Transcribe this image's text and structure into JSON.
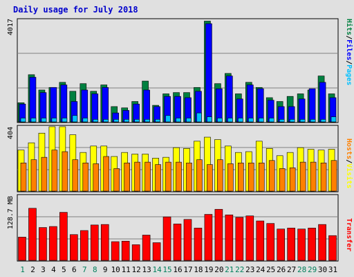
{
  "chart_data": [
    {
      "id": "hits_files_pages",
      "type": "bar",
      "title": "Daily usage for July 2018",
      "categories": [
        "1",
        "2",
        "3",
        "4",
        "5",
        "6",
        "7",
        "8",
        "9",
        "10",
        "11",
        "12",
        "13",
        "14",
        "15",
        "16",
        "17",
        "18",
        "19",
        "20",
        "21",
        "22",
        "23",
        "24",
        "25",
        "26",
        "27",
        "28",
        "29",
        "30",
        "31"
      ],
      "ylim": [
        0,
        4017
      ],
      "max_label": "4017",
      "side_label": {
        "hits": "Hits",
        "sep1": "/",
        "files": "Files",
        "sep2": "/",
        "pages": "Pages"
      },
      "series": [
        {
          "name": "Hits",
          "color": "#008040",
          "values": [
            750,
            1850,
            1250,
            1350,
            1550,
            1200,
            1500,
            1200,
            1450,
            600,
            550,
            800,
            1600,
            650,
            1100,
            1150,
            1150,
            1350,
            3950,
            1500,
            1900,
            1100,
            1550,
            1350,
            950,
            800,
            1000,
            1100,
            1250,
            1800,
            1100
          ]
        },
        {
          "name": "Files",
          "color": "#0000ff",
          "values": [
            700,
            1750,
            1150,
            1350,
            1450,
            800,
            1250,
            1100,
            1350,
            350,
            450,
            700,
            1250,
            600,
            1000,
            1000,
            950,
            1200,
            3850,
            1300,
            1800,
            900,
            1450,
            1300,
            850,
            600,
            600,
            900,
            1300,
            1550,
            950
          ]
        },
        {
          "name": "Pages",
          "color": "#00c0ff",
          "values": [
            150,
            150,
            150,
            150,
            150,
            250,
            150,
            100,
            100,
            100,
            100,
            100,
            100,
            100,
            250,
            150,
            150,
            350,
            200,
            150,
            150,
            150,
            150,
            150,
            150,
            100,
            100,
            100,
            100,
            100,
            200
          ]
        }
      ]
    },
    {
      "id": "hosts_visits",
      "type": "bar",
      "categories": [
        "1",
        "2",
        "3",
        "4",
        "5",
        "6",
        "7",
        "8",
        "9",
        "10",
        "11",
        "12",
        "13",
        "14",
        "15",
        "16",
        "17",
        "18",
        "19",
        "20",
        "21",
        "22",
        "23",
        "24",
        "25",
        "26",
        "27",
        "28",
        "29",
        "30",
        "31"
      ],
      "ylim": [
        0,
        404
      ],
      "max_label": "404",
      "side_label": {
        "hosts": "Hosts",
        "sep": "/",
        "visits": "Visits"
      },
      "series": [
        {
          "name": "Visits",
          "color": "#ffff00",
          "values": [
            255,
            300,
            360,
            400,
            400,
            350,
            240,
            280,
            280,
            215,
            240,
            230,
            230,
            205,
            210,
            270,
            265,
            310,
            335,
            320,
            280,
            240,
            245,
            310,
            265,
            220,
            240,
            270,
            260,
            255,
            260
          ]
        },
        {
          "name": "Hosts",
          "color": "#ff8000",
          "values": [
            175,
            195,
            210,
            255,
            245,
            195,
            175,
            170,
            215,
            140,
            175,
            180,
            180,
            165,
            180,
            180,
            175,
            195,
            165,
            195,
            170,
            175,
            175,
            175,
            190,
            140,
            145,
            180,
            180,
            175,
            190
          ]
        }
      ]
    },
    {
      "id": "transfer",
      "type": "bar",
      "categories": [
        "1",
        "2",
        "3",
        "4",
        "5",
        "6",
        "7",
        "8",
        "9",
        "10",
        "11",
        "12",
        "13",
        "14",
        "15",
        "16",
        "17",
        "18",
        "19",
        "20",
        "21",
        "22",
        "23",
        "24",
        "25",
        "26",
        "27",
        "28",
        "29",
        "30",
        "31"
      ],
      "ylim": [
        0,
        128.7
      ],
      "unit": "MB",
      "max_label": "128.7 MB",
      "side_label": {
        "transfer": "Transfer"
      },
      "series": [
        {
          "name": "Transfer",
          "color": "#ff0000",
          "values": [
            46,
            103,
            65,
            67,
            95,
            51,
            59,
            70,
            71,
            37,
            38,
            31,
            50,
            35,
            86,
            72,
            81,
            64,
            91,
            101,
            90,
            85,
            88,
            78,
            73,
            62,
            64,
            62,
            64,
            71,
            49
          ]
        }
      ]
    }
  ],
  "x_label_colors": {
    "weekday": "#000000",
    "weekend": "#00805c"
  },
  "weekend_days": [
    "1",
    "7",
    "8",
    "14",
    "15",
    "21",
    "22",
    "28",
    "29"
  ],
  "colors": {
    "background": "#e0e0e0",
    "plot": "#e0e0e0",
    "grid": "#808080",
    "title": "#0000cc"
  }
}
